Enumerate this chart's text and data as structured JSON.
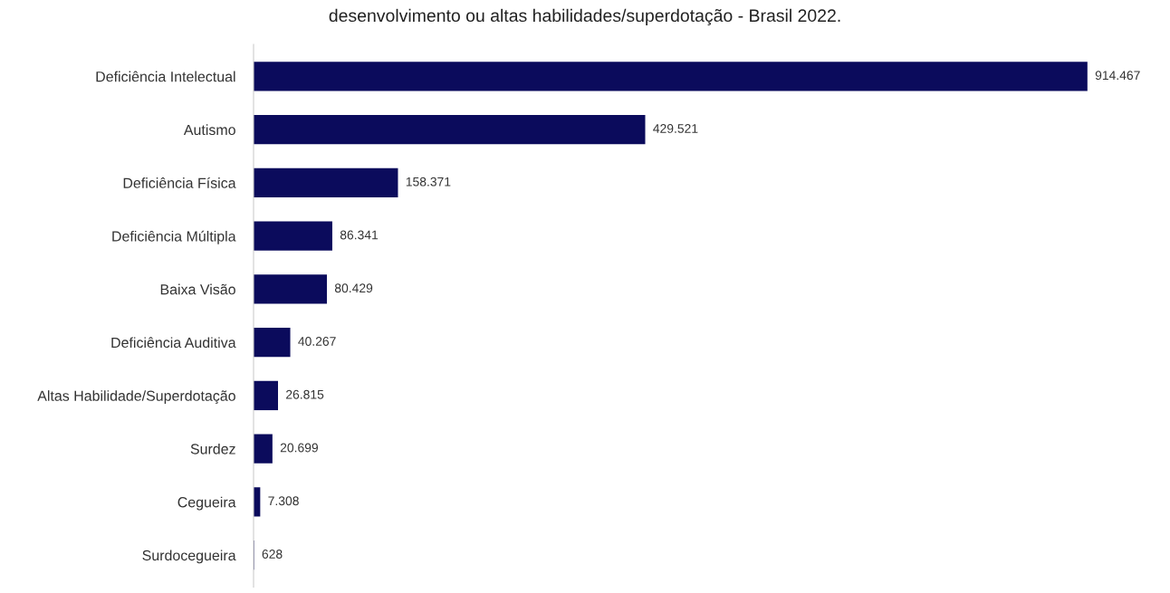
{
  "chart_data": {
    "type": "bar",
    "orientation": "horizontal",
    "title": "desenvolvimento ou altas habilidades/superdotação - Brasil 2022.",
    "categories": [
      "Deficiência Intelectual",
      "Autismo",
      "Deficiência Física",
      "Deficiência Múltipla",
      "Baixa Visão",
      "Deficiência Auditiva",
      "Altas Habilidade/Superdotação",
      "Surdez",
      "Cegueira",
      "Surdocegueira"
    ],
    "values": [
      914467,
      429521,
      158371,
      86341,
      80429,
      40267,
      26815,
      20699,
      7308,
      628
    ],
    "value_labels": [
      "914.467",
      "429.521",
      "158.371",
      "86.341",
      "80.429",
      "40.267",
      "26.815",
      "20.699",
      "7.308",
      "628"
    ],
    "color": "#0b0b5c",
    "grid": false,
    "legend": false
  }
}
